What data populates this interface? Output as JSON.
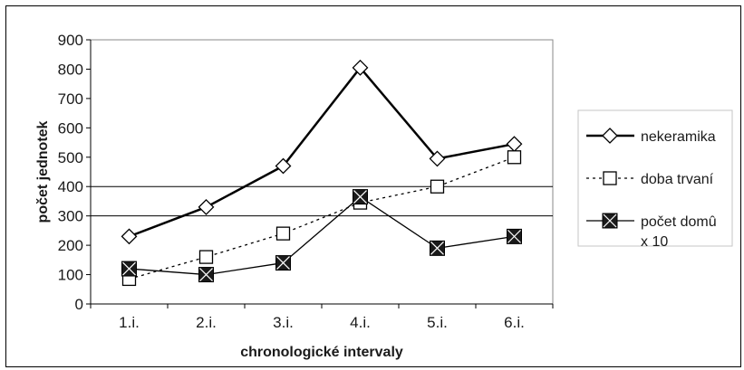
{
  "chart_data": {
    "type": "line",
    "xlabel": "chronologické intervaly",
    "ylabel": "počet jednotek",
    "categories": [
      "1.i.",
      "2.i.",
      "3.i.",
      "4.i.",
      "5.i.",
      "6.i."
    ],
    "ylim": [
      0,
      900
    ],
    "yticks": [
      0,
      100,
      200,
      300,
      400,
      500,
      600,
      700,
      800,
      900
    ],
    "gridlines": [
      300,
      400
    ],
    "legend_position": "right",
    "series": [
      {
        "name": "nekeramika",
        "values": [
          230,
          330,
          470,
          805,
          495,
          545
        ],
        "marker": "diamond",
        "line": "solid-thick",
        "color": "#000000"
      },
      {
        "name": "doba trvaní",
        "values": [
          85,
          160,
          240,
          345,
          400,
          500
        ],
        "marker": "square-open",
        "line": "dotted",
        "color": "#000000"
      },
      {
        "name": "počet domû x 10",
        "legend_lines": [
          "počet domû",
          "x 10"
        ],
        "values": [
          120,
          100,
          140,
          365,
          190,
          230
        ],
        "marker": "square-x-filled",
        "line": "solid-thin",
        "color": "#000000"
      }
    ]
  }
}
